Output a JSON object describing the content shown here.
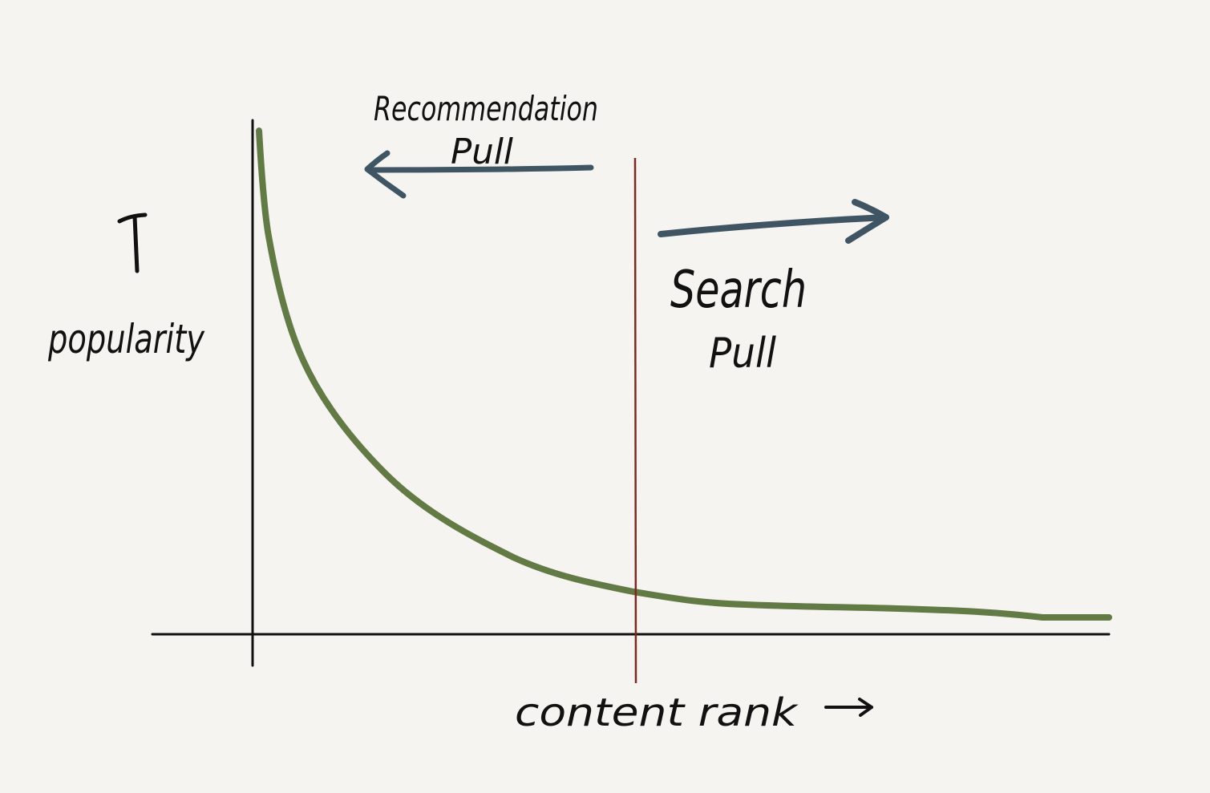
{
  "diagram": {
    "y_axis_label": "popularity",
    "x_axis_label": "content rank",
    "left_label_line1": "Recommendation",
    "left_label_line2": "Pull",
    "right_label_line1": "Search",
    "right_label_line2": "Pull"
  },
  "colors": {
    "background": "#f5f4f1",
    "ink": "#111111",
    "curve": "#627a43",
    "divider": "#7a2a22",
    "arrows": "#3f5563"
  },
  "icons": {
    "y_axis_arrow": "up-arrow-icon",
    "x_axis_arrow": "right-arrow-icon",
    "recommendation_arrow": "left-arrow-icon",
    "search_arrow": "right-arrow-icon"
  }
}
